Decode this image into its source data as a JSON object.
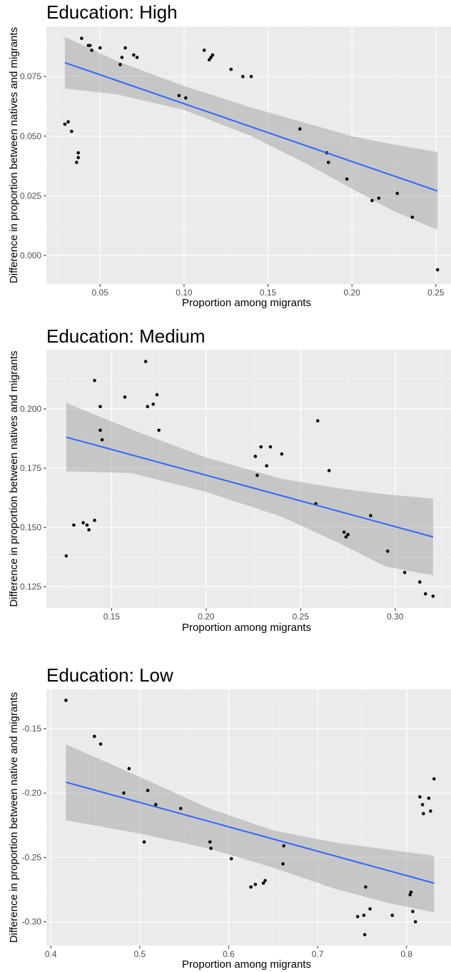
{
  "chart_data": [
    {
      "type": "scatter",
      "title": "Education: High",
      "xlabel": "Proportion among migrants",
      "ylabel": "Difference in proportion between natives and migrants",
      "xlim": [
        0.018,
        0.259
      ],
      "ylim": [
        -0.012,
        0.096
      ],
      "xticks": [
        0.05,
        0.1,
        0.15,
        0.2,
        0.25
      ],
      "xtick_labels": [
        "0.05",
        "0.10",
        "0.15",
        "0.20",
        "0.25"
      ],
      "yticks": [
        0.0,
        0.025,
        0.05,
        0.075
      ],
      "ytick_labels": [
        "0.000",
        "0.025",
        "0.050",
        "0.075"
      ],
      "grid": true,
      "points": [
        [
          0.029,
          0.055
        ],
        [
          0.031,
          0.056
        ],
        [
          0.033,
          0.052
        ],
        [
          0.036,
          0.039
        ],
        [
          0.037,
          0.043
        ],
        [
          0.037,
          0.041
        ],
        [
          0.039,
          0.091
        ],
        [
          0.043,
          0.088
        ],
        [
          0.044,
          0.088
        ],
        [
          0.045,
          0.086
        ],
        [
          0.05,
          0.087
        ],
        [
          0.062,
          0.08
        ],
        [
          0.063,
          0.083
        ],
        [
          0.065,
          0.087
        ],
        [
          0.07,
          0.084
        ],
        [
          0.072,
          0.083
        ],
        [
          0.097,
          0.067
        ],
        [
          0.101,
          0.066
        ],
        [
          0.112,
          0.086
        ],
        [
          0.115,
          0.082
        ],
        [
          0.116,
          0.083
        ],
        [
          0.117,
          0.084
        ],
        [
          0.128,
          0.078
        ],
        [
          0.135,
          0.075
        ],
        [
          0.14,
          0.075
        ],
        [
          0.169,
          0.053
        ],
        [
          0.185,
          0.043
        ],
        [
          0.186,
          0.039
        ],
        [
          0.197,
          0.032
        ],
        [
          0.212,
          0.023
        ],
        [
          0.216,
          0.024
        ],
        [
          0.227,
          0.026
        ],
        [
          0.236,
          0.016
        ],
        [
          0.251,
          -0.006
        ]
      ],
      "fit": {
        "x": [
          0.029,
          0.251
        ],
        "y": [
          0.0808,
          0.027
        ],
        "color": "#3366ff"
      },
      "band": [
        [
          0.029,
          0.0916,
          0.07
        ],
        [
          0.06,
          0.0815,
          0.0675
        ],
        [
          0.1,
          0.071,
          0.061
        ],
        [
          0.14,
          0.062,
          0.05
        ],
        [
          0.17,
          0.056,
          0.0395
        ],
        [
          0.2,
          0.05,
          0.028
        ],
        [
          0.225,
          0.0465,
          0.0185
        ],
        [
          0.251,
          0.0433,
          0.0107
        ]
      ]
    },
    {
      "type": "scatter",
      "title": "Education: Medium",
      "xlabel": "Proportion among migrants",
      "ylabel": "Difference in proportion between natives and migrants",
      "xlim": [
        0.1155,
        0.3295
      ],
      "ylim": [
        0.116,
        0.225
      ],
      "xticks": [
        0.15,
        0.2,
        0.25,
        0.3
      ],
      "xtick_labels": [
        "0.15",
        "0.20",
        "0.25",
        "0.30"
      ],
      "yticks": [
        0.125,
        0.15,
        0.175,
        0.2
      ],
      "ytick_labels": [
        "0.125",
        "0.150",
        "0.175",
        "0.200"
      ],
      "grid": true,
      "points": [
        [
          0.126,
          0.138
        ],
        [
          0.13,
          0.151
        ],
        [
          0.135,
          0.152
        ],
        [
          0.137,
          0.151
        ],
        [
          0.138,
          0.149
        ],
        [
          0.141,
          0.153
        ],
        [
          0.141,
          0.212
        ],
        [
          0.144,
          0.201
        ],
        [
          0.144,
          0.191
        ],
        [
          0.145,
          0.187
        ],
        [
          0.157,
          0.205
        ],
        [
          0.168,
          0.22
        ],
        [
          0.169,
          0.201
        ],
        [
          0.172,
          0.202
        ],
        [
          0.174,
          0.206
        ],
        [
          0.175,
          0.191
        ],
        [
          0.226,
          0.18
        ],
        [
          0.227,
          0.172
        ],
        [
          0.229,
          0.184
        ],
        [
          0.232,
          0.176
        ],
        [
          0.234,
          0.184
        ],
        [
          0.24,
          0.181
        ],
        [
          0.258,
          0.16
        ],
        [
          0.259,
          0.195
        ],
        [
          0.265,
          0.174
        ],
        [
          0.273,
          0.148
        ],
        [
          0.274,
          0.146
        ],
        [
          0.275,
          0.147
        ],
        [
          0.287,
          0.155
        ],
        [
          0.296,
          0.14
        ],
        [
          0.305,
          0.131
        ],
        [
          0.313,
          0.127
        ],
        [
          0.316,
          0.122
        ],
        [
          0.32,
          0.121
        ]
      ],
      "fit": {
        "x": [
          0.126,
          0.32
        ],
        "y": [
          0.1881,
          0.146
        ],
        "color": "#3366ff"
      },
      "band": [
        [
          0.126,
          0.2025,
          0.1737
        ],
        [
          0.16,
          0.1915,
          0.173
        ],
        [
          0.2,
          0.1795,
          0.165
        ],
        [
          0.24,
          0.1705,
          0.1545
        ],
        [
          0.27,
          0.1665,
          0.1435
        ],
        [
          0.295,
          0.164,
          0.1335
        ],
        [
          0.32,
          0.1622,
          0.1298
        ]
      ]
    },
    {
      "type": "scatter",
      "title": "Education: Low",
      "xlabel": "Proportion among migrants",
      "ylabel": "Difference in proportion between native and migrants",
      "xlim": [
        0.395,
        0.85
      ],
      "ylim": [
        -0.3185,
        -0.1195
      ],
      "xticks": [
        0.4,
        0.5,
        0.6,
        0.7,
        0.8
      ],
      "xtick_labels": [
        "0.4",
        "0.5",
        "0.6",
        "0.7",
        "0.8"
      ],
      "yticks": [
        -0.3,
        -0.25,
        -0.2,
        -0.15
      ],
      "ytick_labels": [
        "-0.30",
        "-0.25",
        "-0.20",
        "-0.15"
      ],
      "grid": true,
      "points": [
        [
          0.417,
          -0.128
        ],
        [
          0.449,
          -0.156
        ],
        [
          0.456,
          -0.162
        ],
        [
          0.482,
          -0.2
        ],
        [
          0.488,
          -0.181
        ],
        [
          0.505,
          -0.238
        ],
        [
          0.509,
          -0.198
        ],
        [
          0.518,
          -0.209
        ],
        [
          0.546,
          -0.212
        ],
        [
          0.579,
          -0.238
        ],
        [
          0.58,
          -0.243
        ],
        [
          0.603,
          -0.251
        ],
        [
          0.625,
          -0.273
        ],
        [
          0.63,
          -0.271
        ],
        [
          0.639,
          -0.27
        ],
        [
          0.641,
          -0.268
        ],
        [
          0.661,
          -0.255
        ],
        [
          0.662,
          -0.241
        ],
        [
          0.745,
          -0.296
        ],
        [
          0.752,
          -0.295
        ],
        [
          0.753,
          -0.31
        ],
        [
          0.754,
          -0.273
        ],
        [
          0.759,
          -0.29
        ],
        [
          0.784,
          -0.295
        ],
        [
          0.804,
          -0.279
        ],
        [
          0.805,
          -0.277
        ],
        [
          0.807,
          -0.292
        ],
        [
          0.81,
          -0.3
        ],
        [
          0.815,
          -0.203
        ],
        [
          0.818,
          -0.209
        ],
        [
          0.819,
          -0.216
        ],
        [
          0.825,
          -0.204
        ],
        [
          0.827,
          -0.214
        ],
        [
          0.831,
          -0.189
        ]
      ],
      "fit": {
        "x": [
          0.417,
          0.831
        ],
        "y": [
          -0.1916,
          -0.27
        ],
        "color": "#3366ff"
      },
      "band": [
        [
          0.417,
          -0.1622,
          -0.2212
        ],
        [
          0.5,
          -0.1875,
          -0.2315
        ],
        [
          0.58,
          -0.2125,
          -0.2435
        ],
        [
          0.65,
          -0.229,
          -0.258
        ],
        [
          0.72,
          -0.2385,
          -0.2745
        ],
        [
          0.78,
          -0.244,
          -0.2855
        ],
        [
          0.831,
          -0.2487,
          -0.2927
        ]
      ]
    }
  ]
}
